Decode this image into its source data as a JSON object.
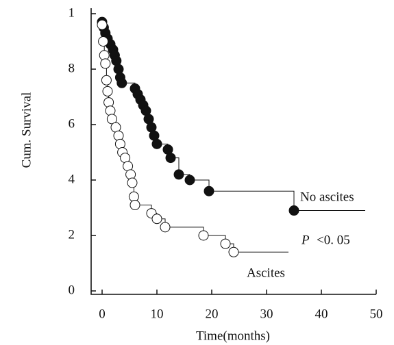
{
  "chart_data": {
    "type": "km",
    "ylabel": "Cum. Survival",
    "xlabel": "Time(months)",
    "xlim": [
      -2,
      50
    ],
    "ylim": [
      0,
      1
    ],
    "xticks": [
      0,
      10,
      20,
      30,
      40,
      50
    ],
    "yticks": [
      0,
      {
        "value": 0.2,
        "label": "2"
      },
      {
        "value": 0.4,
        "label": "4"
      },
      {
        "value": 0.6,
        "label": "6"
      },
      {
        "value": 0.8,
        "label": "8"
      },
      1
    ],
    "series": [
      {
        "name": "No ascites",
        "color": "#111111",
        "filled": true,
        "x": [
          0,
          0.3,
          0.6,
          1,
          1.5,
          2,
          2.3,
          2.6,
          3,
          3.3,
          3.6,
          6,
          6.5,
          7,
          7.5,
          8,
          8.5,
          9,
          9.5,
          10,
          12,
          12.5,
          14,
          16,
          19.5,
          35,
          48
        ],
        "values": [
          0.97,
          0.95,
          0.93,
          0.91,
          0.89,
          0.87,
          0.85,
          0.83,
          0.8,
          0.77,
          0.75,
          0.73,
          0.71,
          0.69,
          0.67,
          0.65,
          0.62,
          0.59,
          0.56,
          0.53,
          0.51,
          0.48,
          0.42,
          0.4,
          0.36,
          0.29,
          0.29
        ]
      },
      {
        "name": "Ascites",
        "color": "#111111",
        "filled": false,
        "x": [
          0,
          0.2,
          0.4,
          0.6,
          0.8,
          1,
          1.2,
          1.5,
          1.8,
          2.5,
          3,
          3.3,
          3.7,
          4.2,
          4.7,
          5.2,
          5.5,
          5.8,
          6,
          9,
          10,
          11.5,
          18.5,
          22.5,
          24,
          34
        ],
        "values": [
          0.96,
          0.9,
          0.85,
          0.82,
          0.76,
          0.72,
          0.68,
          0.65,
          0.62,
          0.59,
          0.56,
          0.53,
          0.5,
          0.48,
          0.45,
          0.42,
          0.39,
          0.34,
          0.31,
          0.28,
          0.26,
          0.23,
          0.2,
          0.17,
          0.14,
          0.14
        ]
      }
    ],
    "annotations": {
      "p_symbol": "P",
      "p_text": "<0. 05"
    }
  }
}
